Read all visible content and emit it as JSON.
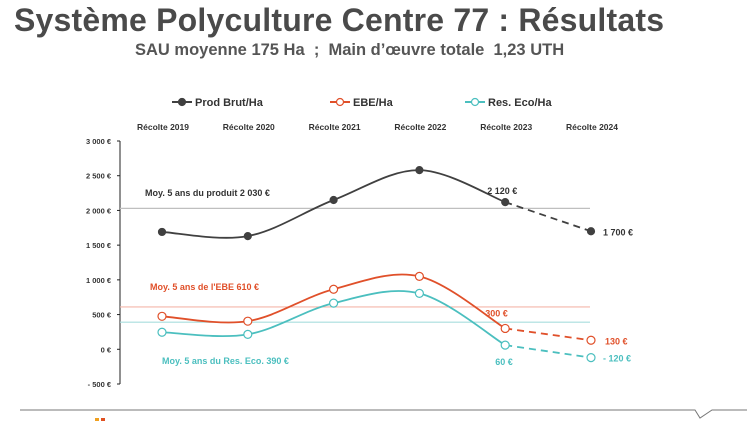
{
  "title": "Système Polyculture Centre 77 : Résultats",
  "subtitle": "SAU moyenne 175 Ha  ;  Main d’œuvre totale  1,23 UTH",
  "chart_data": {
    "type": "line",
    "categories": [
      "Récolte 2019",
      "Récolte 2020",
      "Récolte 2021",
      "Récolte 2022",
      "Récolte 2023",
      "Récolte 2024"
    ],
    "ylim": [
      -500,
      3000
    ],
    "yticks": [
      3000,
      2500,
      2000,
      1500,
      1000,
      500,
      0,
      -500
    ],
    "ytick_labels": [
      "3 000 €",
      "2 500 €",
      "2 000 €",
      "1 500 €",
      "1 000 €",
      "500 €",
      "0 €",
      "- 500 €"
    ],
    "legend_position": "top",
    "series": [
      {
        "name": "Prod Brut/Ha",
        "color": "#404040",
        "filled": true,
        "values": [
          1690,
          1630,
          2150,
          2580,
          2120,
          1700
        ],
        "labels": {
          "4": "2 120 €",
          "5": "1 700 €"
        },
        "average": {
          "value": 2030,
          "label": "Moy. 5 ans du produit 2 030 €",
          "color": "#bfbfbf"
        }
      },
      {
        "name": "EBE/Ha",
        "color": "#e0502a",
        "filled": false,
        "values": [
          475,
          405,
          865,
          1050,
          300,
          130
        ],
        "labels": {
          "4": "300 €",
          "5": "130 €"
        },
        "average": {
          "value": 610,
          "label": "Moy. 5 ans de l'EBE  610 €",
          "color": "#f4b6aa"
        }
      },
      {
        "name": "Res. Eco/Ha",
        "color": "#4bbfbf",
        "filled": false,
        "values": [
          245,
          215,
          665,
          805,
          60,
          -120
        ],
        "labels": {
          "4": "60 €",
          "5": "- 120 €"
        },
        "average": {
          "value": 390,
          "label": "Moy. 5 ans du Res. Eco.  390 €",
          "color": "#a9dede"
        }
      }
    ]
  }
}
